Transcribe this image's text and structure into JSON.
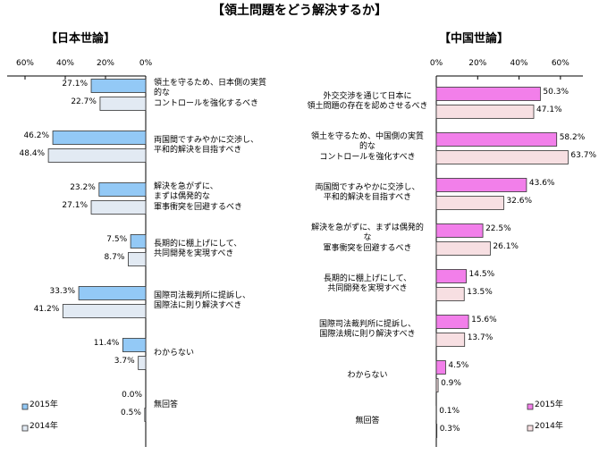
{
  "title": "【領土問題をどう解決するか】",
  "chart_data": [
    {
      "type": "bar",
      "orientation": "horizontal",
      "reversed": true,
      "title": "【日本世論】",
      "categories": [
        "領土を守るため、日本側の実質\n的な\nコントロールを強化するべき",
        "両国間ですみやかに交渉し、\n平和的解決を目指すべき",
        "解決を急がずに、\nまずは偶発的な\n軍事衝突を回避するべき",
        "長期的に棚上げにして、\n共同開発を実現すべき",
        "国際司法裁判所に提訴し、\n国際法に則り解決すべき",
        "わからない",
        "無回答"
      ],
      "series": [
        {
          "name": "2015年",
          "color": "#93c9f6",
          "values": [
            27.1,
            46.2,
            23.2,
            7.5,
            33.3,
            11.4,
            0.0
          ],
          "value_labels": [
            "27.1%",
            "46.2%",
            "23.2%",
            "7.5%",
            "33.3%",
            "11.4%",
            "0.0%"
          ]
        },
        {
          "name": "2014年",
          "color": "#e2eaf3",
          "values": [
            22.7,
            48.4,
            27.1,
            8.7,
            41.2,
            3.7,
            0.5
          ],
          "value_labels": [
            "22.7%",
            "48.4%",
            "27.1%",
            "8.7%",
            "41.2%",
            "3.7%",
            "0.5%"
          ]
        }
      ],
      "xlim": [
        0,
        60
      ],
      "xticks": [
        {
          "value": 60,
          "label": "60%"
        },
        {
          "value": 40,
          "label": "40%"
        },
        {
          "value": 20,
          "label": "20%"
        },
        {
          "value": 0,
          "label": "0%"
        }
      ],
      "legend": "lower left"
    },
    {
      "type": "bar",
      "orientation": "horizontal",
      "reversed": false,
      "title": "【中国世論】",
      "categories": [
        "外交交渉を通じて日本に\n領土問題の存在を認めさせるべき",
        "領土を守るため、中国側の実質\n的な\nコントロールを強化すべき",
        "両国間ですみやかに交渉し、\n平和的解決を目指すべき",
        "解決を急がずに、まずは偶発的\nな\n軍事衝突を回避するべき",
        "長期的に棚上げにして、\n共同開発を実現すべき",
        "国際司法裁判所に提訴し、\n国際法規に則り解決すべき",
        "わからない",
        "無回答"
      ],
      "series": [
        {
          "name": "2015年",
          "color": "#f27fea",
          "values": [
            50.3,
            58.2,
            43.6,
            22.5,
            14.5,
            15.6,
            4.5,
            0.1
          ],
          "value_labels": [
            "50.3%",
            "58.2%",
            "43.6%",
            "22.5%",
            "14.5%",
            "15.6%",
            "4.5%",
            "0.1%"
          ]
        },
        {
          "name": "2014年",
          "color": "#f7dfe2",
          "values": [
            47.1,
            63.7,
            32.6,
            26.1,
            13.5,
            13.7,
            0.9,
            0.3
          ],
          "value_labels": [
            "47.1%",
            "63.7%",
            "32.6%",
            "26.1%",
            "13.5%",
            "13.7%",
            "0.9%",
            "0.3%"
          ]
        }
      ],
      "xlim": [
        0,
        70
      ],
      "xticks": [
        {
          "value": 0,
          "label": "0%"
        },
        {
          "value": 20,
          "label": "20%"
        },
        {
          "value": 40,
          "label": "40%"
        },
        {
          "value": 60,
          "label": "60%"
        }
      ],
      "legend": "lower right"
    }
  ]
}
